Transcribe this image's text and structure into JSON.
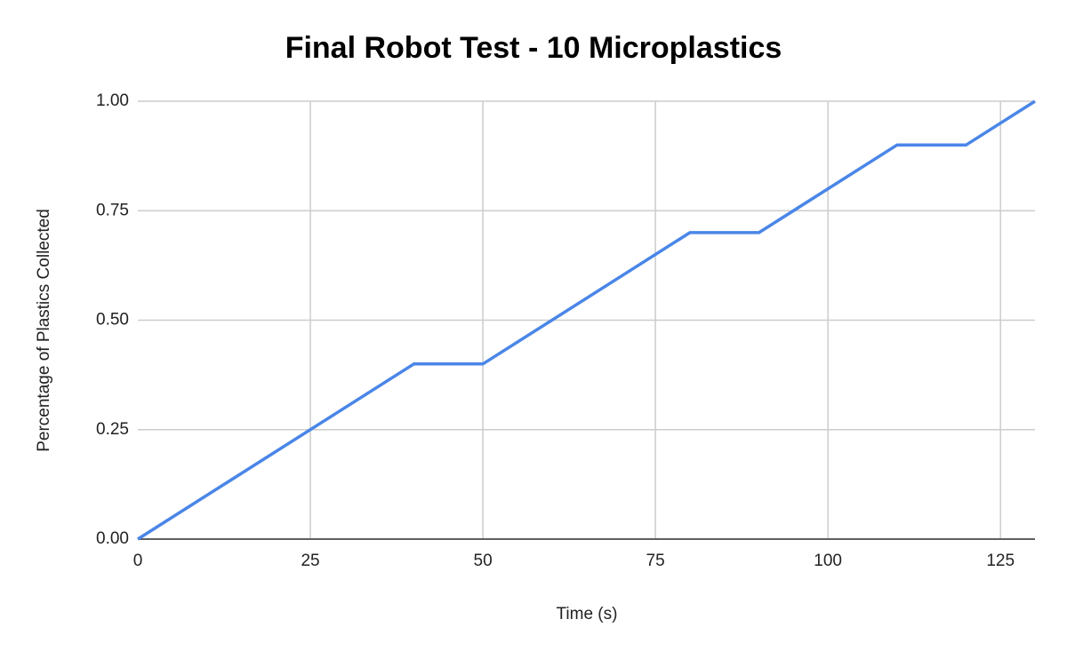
{
  "chart_data": {
    "type": "line",
    "title": "Final Robot Test - 10 Microplastics",
    "x_label": "Time (s)",
    "y_label": "Percentage of Plastics Collected",
    "x": [
      0,
      40,
      50,
      80,
      90,
      110,
      120,
      130
    ],
    "values": [
      0,
      0.4,
      0.4,
      0.7,
      0.7,
      0.9,
      0.9,
      1.0
    ],
    "color": "#4a86e8",
    "xlim": [
      0,
      130
    ],
    "xticks": [
      0,
      25,
      50,
      75,
      100,
      125
    ],
    "ylim": [
      0,
      1
    ],
    "yticks": [
      {
        "value": 0,
        "label": "0.00"
      },
      {
        "value": 0.25,
        "label": "0.25"
      },
      {
        "value": 0.5,
        "label": "0.50"
      },
      {
        "value": 0.75,
        "label": "0.75"
      },
      {
        "value": 1,
        "label": "1.00"
      }
    ],
    "grid": true
  }
}
